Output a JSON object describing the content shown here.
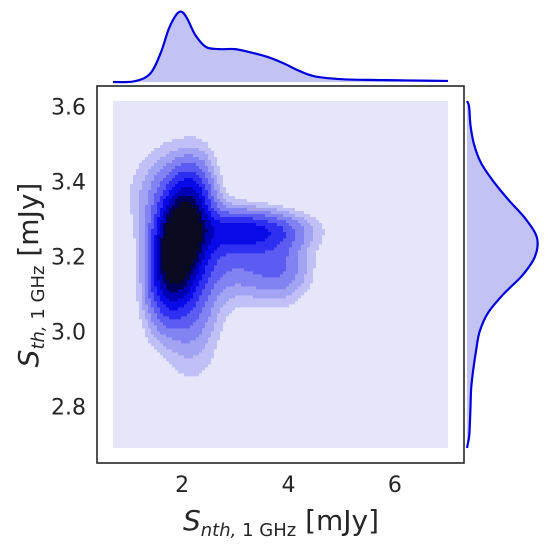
{
  "chart_data": {
    "type": "kde-joint",
    "xlabel": {
      "main": "S",
      "sub_italic": "nth,",
      "sub_plain": " 1 GHz",
      "unit": " [mJy]"
    },
    "ylabel": {
      "main": "S",
      "sub_italic": "th,",
      "sub_plain": " 1 GHz",
      "unit": " [mJy]"
    },
    "xlim": [
      0.4,
      7.3
    ],
    "ylim": [
      2.65,
      3.655
    ],
    "x_ticks": [
      "2",
      "4",
      "6"
    ],
    "x_tick_values": [
      2,
      4,
      6
    ],
    "y_ticks": [
      "2.8",
      "3.0",
      "3.2",
      "3.4",
      "3.6"
    ],
    "y_tick_values": [
      2.8,
      3.0,
      3.2,
      3.4,
      3.6
    ],
    "kde_extent": {
      "x": [
        0.7,
        7.0
      ],
      "y": [
        2.69,
        3.615
      ]
    },
    "colors": {
      "background": "#e6e6fb",
      "levels": [
        "#c0c0f7",
        "#a3a3f4",
        "#8282f2",
        "#5c5cf2",
        "#2f2ff2",
        "#0a0ae8",
        "#0000b4",
        "#00005a",
        "#0a0a20"
      ],
      "marginal_line": "#0000dd",
      "marginal_fill": "#c2c2f5"
    },
    "joint_density": {
      "modes": [
        {
          "x": 1.95,
          "y": 3.24,
          "peak": 1.0
        },
        {
          "x": 3.3,
          "y": 3.27,
          "peak": 0.4
        }
      ]
    },
    "marginal_x": {
      "x": [
        0.7,
        1.1,
        1.4,
        1.6,
        1.75,
        1.9,
        2.0,
        2.1,
        2.25,
        2.45,
        2.7,
        3.0,
        3.3,
        3.6,
        3.9,
        4.2,
        4.5,
        5.0,
        5.5,
        6.0,
        6.5,
        7.0
      ],
      "density": [
        0.0,
        0.01,
        0.12,
        0.42,
        0.76,
        0.97,
        1.0,
        0.9,
        0.67,
        0.5,
        0.47,
        0.47,
        0.42,
        0.36,
        0.27,
        0.16,
        0.08,
        0.04,
        0.03,
        0.025,
        0.02,
        0.015
      ]
    },
    "marginal_y": {
      "y": [
        2.69,
        2.72,
        2.75,
        2.8,
        2.85,
        2.9,
        2.95,
        3.0,
        3.05,
        3.1,
        3.15,
        3.2,
        3.25,
        3.3,
        3.35,
        3.4,
        3.45,
        3.5,
        3.55,
        3.6,
        3.615
      ],
      "density": [
        0.0,
        0.03,
        0.04,
        0.05,
        0.06,
        0.09,
        0.13,
        0.18,
        0.3,
        0.52,
        0.79,
        0.97,
        1.0,
        0.84,
        0.6,
        0.38,
        0.2,
        0.1,
        0.05,
        0.03,
        0.0
      ]
    }
  }
}
